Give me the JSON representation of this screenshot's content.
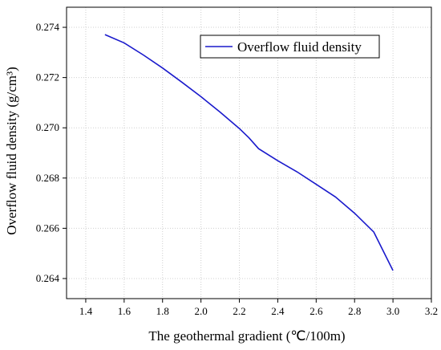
{
  "chart_data": {
    "type": "line",
    "xlabel": "The geothermal gradient (℃/100m)",
    "ylabel": "Overflow fluid density (g/cm³)",
    "xlim": [
      1.3,
      3.2
    ],
    "ylim": [
      0.2632,
      0.2748
    ],
    "x_ticks": [
      1.4,
      1.6,
      1.8,
      2.0,
      2.2,
      2.4,
      2.6,
      2.8,
      3.0,
      3.2
    ],
    "y_ticks": [
      0.264,
      0.266,
      0.268,
      0.27,
      0.272,
      0.274
    ],
    "x_tick_labels": [
      "1.4",
      "1.6",
      "1.8",
      "2.0",
      "2.2",
      "2.4",
      "2.6",
      "2.8",
      "3.0",
      "3.2"
    ],
    "y_tick_labels": [
      "0.264",
      "0.266",
      "0.268",
      "0.270",
      "0.272",
      "0.274"
    ],
    "grid": true,
    "legend_position": "top-right",
    "series": [
      {
        "name": "Overflow fluid density",
        "color": "#1a1acc",
        "x": [
          1.5,
          1.6,
          1.7,
          1.8,
          1.9,
          2.0,
          2.1,
          2.2,
          2.25,
          2.3,
          2.4,
          2.5,
          2.6,
          2.7,
          2.8,
          2.9,
          3.0
        ],
        "y": [
          0.27371,
          0.27338,
          0.2729,
          0.27238,
          0.27182,
          0.27124,
          0.27062,
          0.26997,
          0.2696,
          0.26917,
          0.26869,
          0.26825,
          0.26775,
          0.26725,
          0.2666,
          0.26585,
          0.26432
        ]
      }
    ]
  }
}
